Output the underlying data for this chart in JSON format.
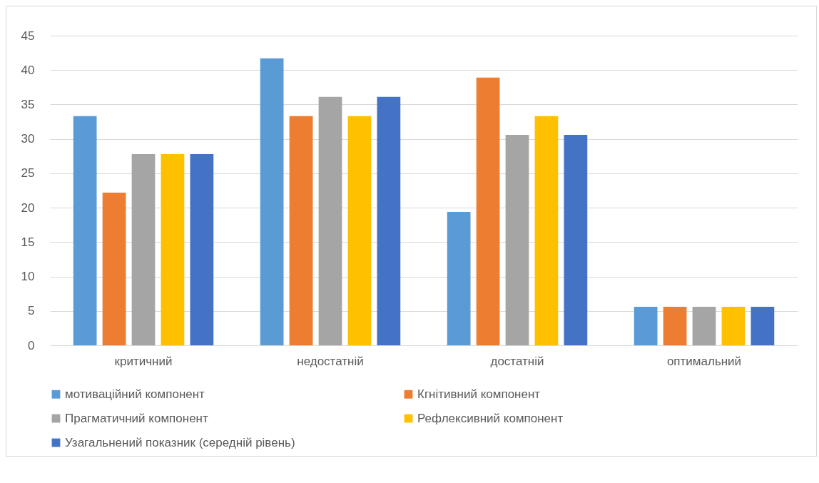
{
  "chart_data": {
    "type": "bar",
    "categories": [
      "критичний",
      "недостатній",
      "достатній",
      "оптимальний"
    ],
    "series": [
      {
        "name": "мотиваційний компонент",
        "color": "#5b9bd5",
        "values": [
          33.3,
          41.7,
          19.4,
          5.6
        ]
      },
      {
        "name": "Кгнітивний компонент",
        "color": "#ed7d31",
        "values": [
          22.2,
          33.3,
          38.9,
          5.6
        ]
      },
      {
        "name": "Прагматичний компонент",
        "color": "#a5a5a5",
        "values": [
          27.8,
          36.1,
          30.6,
          5.6
        ]
      },
      {
        "name": "Рефлексивний компонент",
        "color": "#ffc000",
        "values": [
          27.8,
          33.3,
          33.3,
          5.6
        ]
      },
      {
        "name": "Узагальнений показник (середній рівень)",
        "color": "#4472c4",
        "values": [
          27.8,
          36.1,
          30.6,
          5.6
        ]
      }
    ],
    "ylim": [
      0,
      45
    ],
    "yticks": [
      0,
      5,
      10,
      15,
      20,
      25,
      30,
      35,
      40,
      45
    ],
    "grid": "y",
    "legend": "bottom"
  }
}
